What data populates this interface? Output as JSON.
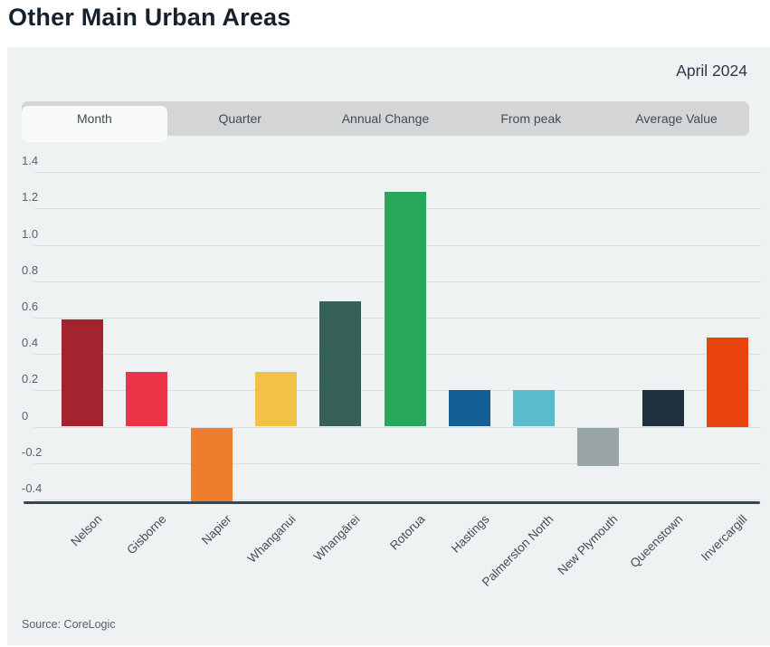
{
  "page": {
    "title": "Other Main Urban Areas",
    "date_label": "April 2024",
    "source": "Source: CoreLogic"
  },
  "tabs": [
    {
      "label": "Month",
      "active": true
    },
    {
      "label": "Quarter",
      "active": false
    },
    {
      "label": "Annual Change",
      "active": false
    },
    {
      "label": "From peak",
      "active": false
    },
    {
      "label": "Average Value",
      "active": false
    }
  ],
  "colors": {
    "panel_bg": "#eef2f3",
    "tabbar_bg": "#d3d5d6",
    "active_tab_bg": "#f8fafa",
    "gridline": "#dadfe2",
    "axis_line": "#37474f",
    "title_text": "#15222e"
  },
  "chart_data": {
    "type": "bar",
    "title": "Other Main Urban Areas",
    "subtitle": "April 2024",
    "xlabel": "",
    "ylabel": "",
    "grid": true,
    "legend": "none",
    "categories": [
      "Nelson",
      "Gisborne",
      "Napier",
      "Whanganui",
      "Whangārei",
      "Rotorua",
      "Hastings",
      "Palmerston North",
      "New Plymouth",
      "Queenstown",
      "Invercargill"
    ],
    "values": [
      0.59,
      0.3,
      -0.41,
      0.3,
      0.69,
      1.29,
      0.2,
      0.2,
      -0.21,
      0.2,
      0.49
    ],
    "bar_colors": [
      "#a3242f",
      "#eb3445",
      "#ee7d2d",
      "#f1c246",
      "#366159",
      "#28a659",
      "#135e94",
      "#58bcca",
      "#9aa5a7",
      "#21303e",
      "#e94410"
    ],
    "yticks": [
      1.4,
      1.2,
      1.0,
      0.8,
      0.6,
      0.4,
      0.2,
      0,
      -0.2,
      -0.4
    ],
    "ytick_labels": [
      "1.4",
      "1.2",
      "1.0",
      "0.8",
      "0.6",
      "0.4",
      "0.2",
      "0",
      "-0.2",
      "-0.4"
    ],
    "ylim": [
      -0.42,
      1.51
    ]
  }
}
